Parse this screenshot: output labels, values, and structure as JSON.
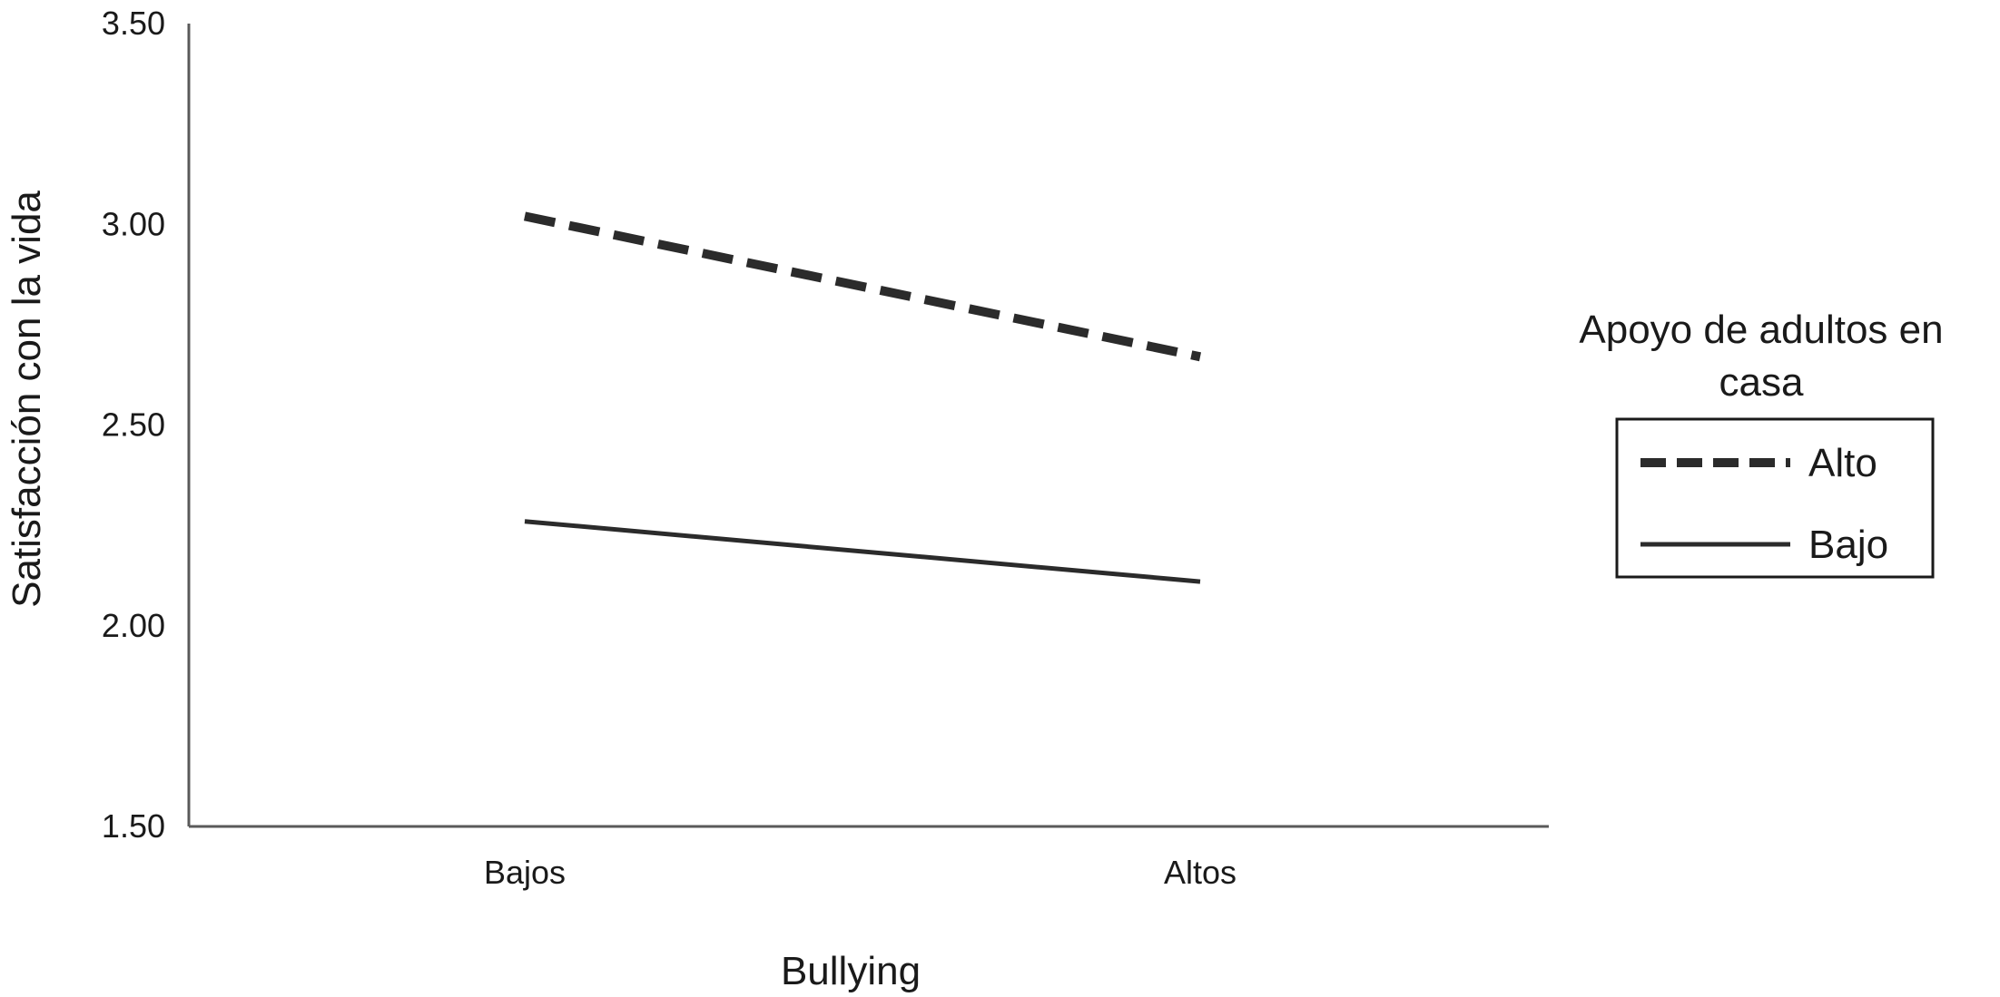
{
  "chart_data": {
    "type": "line",
    "title": "",
    "xlabel": "Bullying",
    "ylabel": "Satisfacción con la vida",
    "categories": [
      "Bajos",
      "Altos"
    ],
    "y_ticks": [
      "1.50",
      "2.00",
      "2.50",
      "3.00",
      "3.50"
    ],
    "ylim": [
      1.5,
      3.5
    ],
    "grid": false,
    "legend": {
      "title": "Apoyo de adultos en casa",
      "title_lines": [
        "Apoyo de adultos en",
        "casa"
      ],
      "placement": "right"
    },
    "series": [
      {
        "name": "Alto",
        "style": "dashed",
        "color": "#2b2b2b",
        "values": [
          3.02,
          2.67
        ]
      },
      {
        "name": "Bajo",
        "style": "solid",
        "color": "#2b2b2b",
        "values": [
          2.26,
          2.11
        ]
      }
    ]
  }
}
